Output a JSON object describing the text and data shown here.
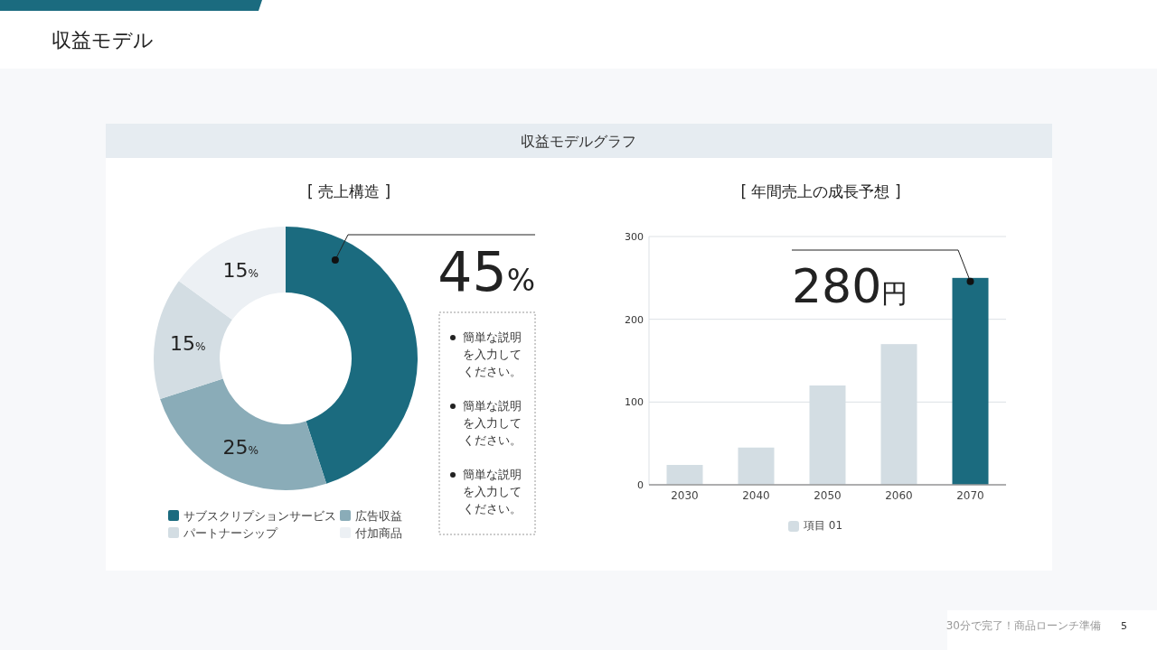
{
  "chart_data": [
    {
      "type": "other",
      "title": "収益モデル",
      "subtitle": "収益モデルグラフ",
      "annotations": [
        "30分で完了！商品ローンチ準備",
        "5"
      ]
    },
    {
      "type": "donut",
      "title": "[ 売上構造 ]",
      "categories": [
        "サブスクリプションサービス",
        "広告収益",
        "パートナーシップ",
        "付加商品"
      ],
      "values": [
        45,
        25,
        15,
        15
      ],
      "colors": [
        "#1b6b7f",
        "#8aacb8",
        "#d3dde3",
        "#ecf0f4"
      ],
      "value_labels": [
        null,
        "25%",
        "15%",
        "15%"
      ],
      "legend": "bottom",
      "annotations": [
        {
          "text": "45%",
          "x": "サブスクリプションサービス"
        },
        "簡単な説明を入力してください。",
        "簡単な説明を入力してください。",
        "簡単な説明を入力してください。"
      ]
    },
    {
      "type": "bar",
      "title": "[ 年間売上の成長予想 ]",
      "categories": [
        "2030",
        "2040",
        "2050",
        "2060",
        "2070"
      ],
      "series": [
        {
          "name": "項目 01",
          "color": "#d3dde3",
          "colors": [
            "#d3dde3",
            "#d3dde3",
            "#d3dde3",
            "#d3dde3",
            "#1b6b7f"
          ],
          "values": [
            24,
            45,
            120,
            170,
            250
          ]
        }
      ],
      "ylim": [
        0,
        300
      ],
      "yticks": [
        0,
        100,
        200,
        300
      ],
      "grid": "y",
      "legend": "bottom",
      "annotations": [
        {
          "text": "280円",
          "x": "2070",
          "y": 250
        }
      ]
    }
  ]
}
